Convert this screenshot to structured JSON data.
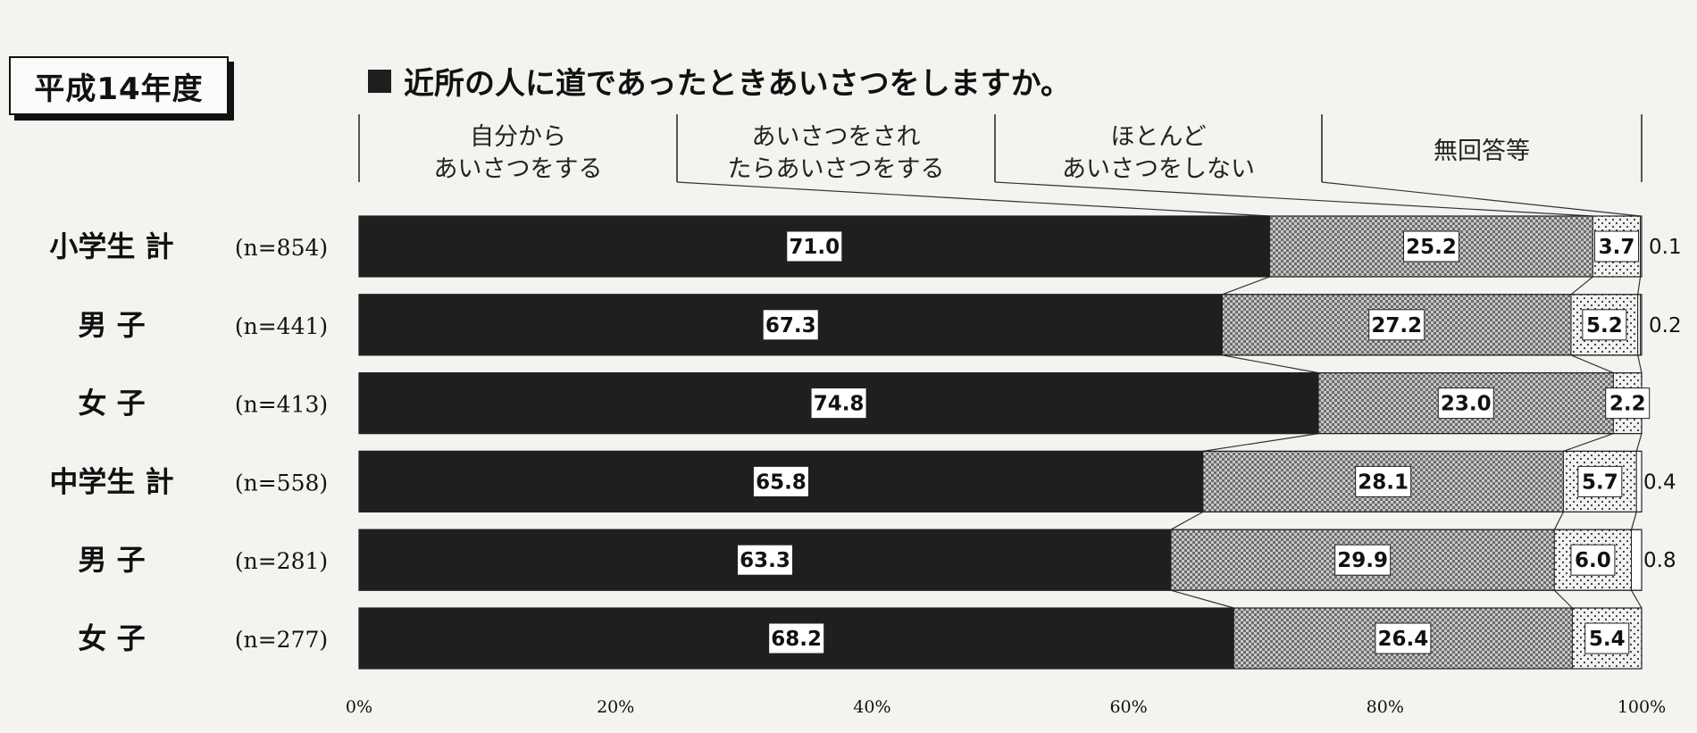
{
  "year_label": "平成14年度",
  "chart_data": {
    "type": "bar",
    "orientation": "horizontal",
    "stacked": true,
    "normalized": true,
    "title": "近所の人に道であったときあいさつをしますか。",
    "legend_position": "top",
    "categories": [
      "小学生 計",
      "男 子",
      "女 子",
      "中学生 計",
      "男 子",
      "女 子"
    ],
    "n": [
      "(n=854)",
      "(n=441)",
      "(n=413)",
      "(n=558)",
      "(n=281)",
      "(n=277)"
    ],
    "series": [
      {
        "name": "自分から\nあいさつをする",
        "pattern": "solid-dark",
        "color": "#1f1f1f",
        "values": [
          71.0,
          67.3,
          74.8,
          65.8,
          63.3,
          68.2
        ],
        "labels": [
          "71.0",
          "67.3",
          "74.8",
          "65.8",
          "63.3",
          "68.2"
        ]
      },
      {
        "name": "あいさつをされ\nたらあいさつをする",
        "pattern": "crosshatch",
        "color": "#8a8a8a",
        "values": [
          25.2,
          27.2,
          23.0,
          28.1,
          29.9,
          26.4
        ],
        "labels": [
          "25.2",
          "27.2",
          "23.0",
          "28.1",
          "29.9",
          "26.4"
        ]
      },
      {
        "name": "ほとんど\nあいさつをしない",
        "pattern": "dots",
        "color": "#e6e6e6",
        "values": [
          3.7,
          5.2,
          2.2,
          5.7,
          6.0,
          5.4
        ],
        "labels": [
          "3.7",
          "5.2",
          "2.2",
          "5.7",
          "6.0",
          "5.4"
        ]
      },
      {
        "name": "無回答等",
        "pattern": "white",
        "color": "#ffffff",
        "values": [
          0.1,
          0.2,
          0.0,
          0.4,
          0.8,
          0.0
        ],
        "labels": [
          "0.1",
          "0.2",
          "",
          "0.4",
          "0.8",
          ""
        ]
      }
    ],
    "x_ticks": [
      "0%",
      "20%",
      "40%",
      "60%",
      "80%",
      "100%"
    ],
    "xlim": [
      0,
      100
    ],
    "grid": false
  }
}
